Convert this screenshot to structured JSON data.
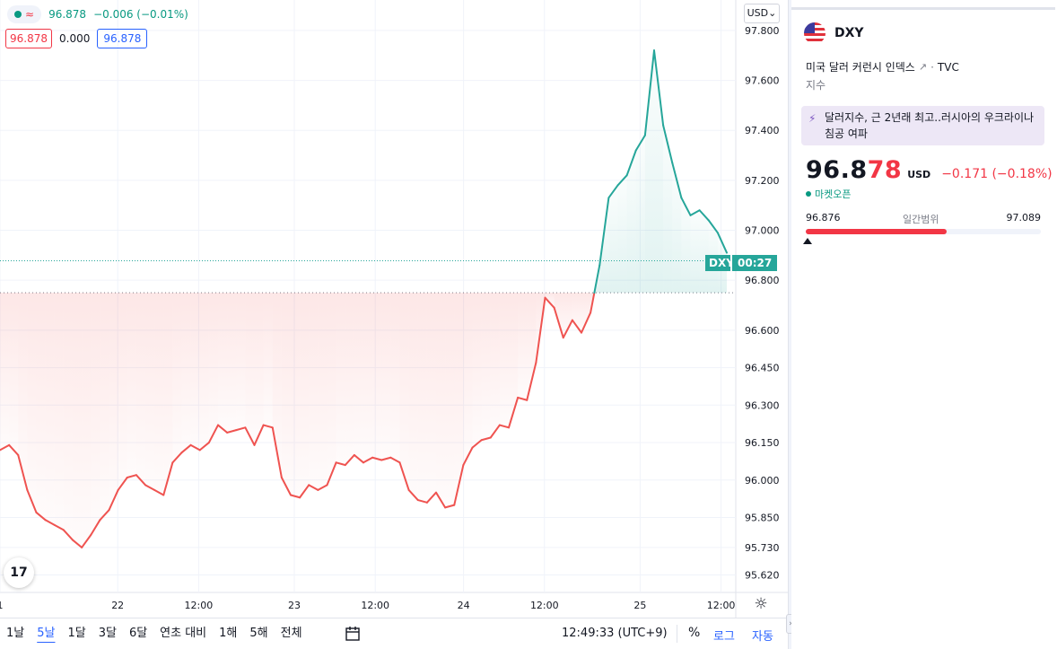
{
  "legend": {
    "last": "96.878",
    "change": "−0.006 (−0.01%)",
    "bid": "96.878",
    "spread": "0.000",
    "ask": "96.878"
  },
  "currency": "USD",
  "axis": {
    "y_ticks": [
      "97.800",
      "97.600",
      "97.400",
      "97.200",
      "97.000",
      "96.800",
      "96.600",
      "96.450",
      "96.300",
      "96.150",
      "96.000",
      "95.850",
      "95.730",
      "95.620"
    ],
    "x_ticks": [
      "1",
      "22",
      "12:00",
      "23",
      "12:00",
      "24",
      "12:00",
      "25",
      "12:00"
    ]
  },
  "price_tag": {
    "symbol": "DXY",
    "countdown": "00:27"
  },
  "toolbar": {
    "ranges": [
      "1날",
      "5날",
      "1달",
      "3달",
      "6달",
      "연초 대비",
      "1해",
      "5해",
      "전체"
    ],
    "active_range": "5날",
    "time": "12:49:33 (UTC+9)",
    "percent": "%",
    "log": "로그",
    "auto": "자동"
  },
  "side": {
    "symbol": "DXY",
    "description": "미국 달러 커런시 인덱스",
    "exchange": "TVC",
    "type": "지수",
    "news": "달러지수, 근 2년래 최고..러시아의 우크라이나 침공 여파",
    "price_main": "96.8",
    "price_hl": "78",
    "price_currency": "USD",
    "price_change": "−0.171 (−0.18%)",
    "market_status": "마켓오픈",
    "range_low": "96.876",
    "range_label": "일간범위",
    "range_high": "97.089",
    "range_fill_fraction": 0.6
  },
  "colors": {
    "up": "#26a69a",
    "down": "#ef5350",
    "accent": "#2962ff"
  },
  "chart_data": {
    "type": "area",
    "title": "",
    "previous_close": 96.75,
    "last": 96.878,
    "ylim": [
      95.55,
      97.85
    ],
    "x_labels": [
      "1",
      "22",
      "12:00",
      "23",
      "12:00",
      "24",
      "12:00",
      "25",
      "12:00"
    ],
    "y_ticks": [
      97.8,
      97.6,
      97.4,
      97.2,
      97.0,
      96.8,
      96.6,
      96.45,
      96.3,
      96.15,
      96.0,
      95.85,
      95.73,
      95.62
    ],
    "x": [
      0,
      2,
      4,
      6,
      8,
      10,
      12,
      14,
      16,
      18,
      20,
      22,
      24,
      26,
      28,
      30,
      32,
      34,
      36,
      38,
      40,
      42,
      44,
      46,
      48,
      50,
      52,
      54,
      56,
      58,
      60,
      62,
      64,
      66,
      68,
      70,
      72,
      74,
      76,
      78,
      80,
      82,
      84,
      86,
      88,
      90,
      92,
      94,
      96,
      98,
      100,
      102,
      104,
      106,
      108,
      110,
      112,
      114,
      116,
      118,
      120,
      122,
      124,
      126,
      128,
      130,
      132,
      134,
      136,
      138,
      140,
      142,
      144,
      146,
      148,
      150,
      152,
      154,
      156,
      158,
      160
    ],
    "y": [
      96.12,
      96.14,
      96.1,
      95.96,
      95.87,
      95.84,
      95.82,
      95.8,
      95.76,
      95.73,
      95.78,
      95.84,
      95.88,
      95.96,
      96.01,
      96.02,
      95.98,
      95.96,
      95.94,
      96.07,
      96.11,
      96.14,
      96.12,
      96.15,
      96.22,
      96.19,
      96.2,
      96.21,
      96.14,
      96.22,
      96.21,
      96.01,
      95.94,
      95.93,
      95.98,
      95.96,
      95.98,
      96.07,
      96.06,
      96.1,
      96.07,
      96.09,
      96.08,
      96.09,
      96.07,
      95.96,
      95.92,
      95.91,
      95.95,
      95.89,
      95.9,
      96.06,
      96.13,
      96.16,
      96.17,
      96.22,
      96.21,
      96.33,
      96.32,
      96.47,
      96.73,
      96.69,
      96.57,
      96.64,
      96.59,
      96.67,
      96.86,
      97.13,
      97.18,
      97.22,
      97.32,
      97.38,
      97.72,
      97.42,
      97.27,
      97.13,
      97.06,
      97.08,
      97.04,
      96.99,
      96.91
    ]
  }
}
